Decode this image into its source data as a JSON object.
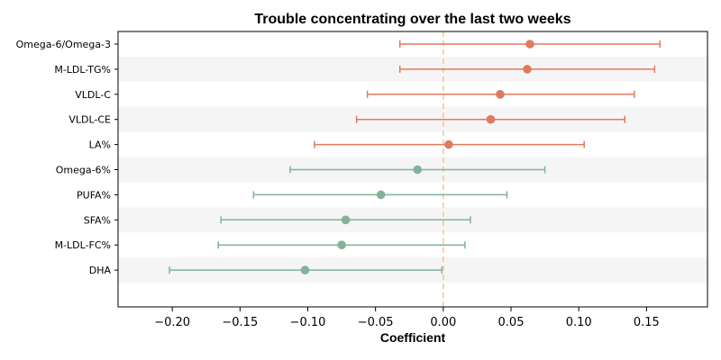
{
  "chart_data": {
    "type": "forest",
    "title": "Trouble concentrating over the last two weeks",
    "xlabel": "Coefficient",
    "xlim": [
      -0.24,
      0.195
    ],
    "xticks": [
      -0.2,
      -0.15,
      -0.1,
      -0.05,
      0.0,
      0.05,
      0.1,
      0.15
    ],
    "xtick_labels": [
      "−0.20",
      "−0.15",
      "−0.10",
      "−0.05",
      "0.00",
      "0.05",
      "0.10",
      "0.15"
    ],
    "reference_line": 0.0,
    "row_banding": true,
    "colors": {
      "positive": "#E07A5F",
      "negative": "#81B29A",
      "reference": "#F2CC8F",
      "band": "#F5F5F5"
    },
    "rows": [
      {
        "label": "Omega-6/Omega-3",
        "estimate": 0.064,
        "ci_low": -0.032,
        "ci_high": 0.16
      },
      {
        "label": "M-LDL-TG%",
        "estimate": 0.062,
        "ci_low": -0.032,
        "ci_high": 0.156
      },
      {
        "label": "VLDL-C",
        "estimate": 0.042,
        "ci_low": -0.056,
        "ci_high": 0.141
      },
      {
        "label": "VLDL-CE",
        "estimate": 0.035,
        "ci_low": -0.064,
        "ci_high": 0.134
      },
      {
        "label": "LA%",
        "estimate": 0.004,
        "ci_low": -0.095,
        "ci_high": 0.104
      },
      {
        "label": "Omega-6%",
        "estimate": -0.019,
        "ci_low": -0.113,
        "ci_high": 0.075
      },
      {
        "label": "PUFA%",
        "estimate": -0.046,
        "ci_low": -0.14,
        "ci_high": 0.047
      },
      {
        "label": "SFA%",
        "estimate": -0.072,
        "ci_low": -0.164,
        "ci_high": 0.02
      },
      {
        "label": "M-LDL-FC%",
        "estimate": -0.075,
        "ci_low": -0.166,
        "ci_high": 0.016
      },
      {
        "label": "DHA",
        "estimate": -0.102,
        "ci_low": -0.202,
        "ci_high": -0.001
      }
    ]
  }
}
